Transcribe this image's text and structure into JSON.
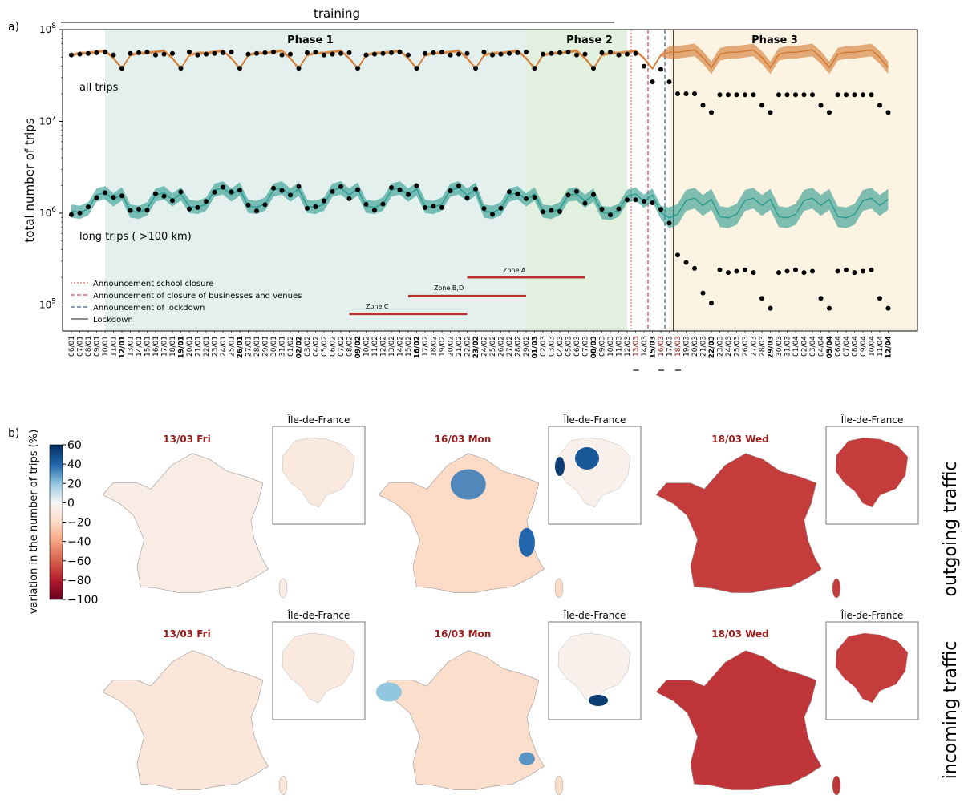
{
  "panel_a_label": "a)",
  "panel_b_label": "b)",
  "training_label": "training",
  "phases": [
    "Phase 1",
    "Phase 2",
    "Phase 3"
  ],
  "series_labels": {
    "all": "all trips",
    "long": "long  trips ( >100 km)"
  },
  "zones": [
    "Zone A",
    "Zone B,D",
    "Zone C"
  ],
  "legend": [
    {
      "label": "Announcement school closure",
      "color": "#e05050",
      "style": "dotted"
    },
    {
      "label": "Announcement of closure of businesses and venues",
      "color": "#b22222",
      "style": "dashed"
    },
    {
      "label": "Announcement of lockdown",
      "color": "#1a3a6a",
      "style": "dashed"
    },
    {
      "label": "Lockdown",
      "color": "#444444",
      "style": "solid"
    }
  ],
  "colors": {
    "phase1": "#e3f0ee",
    "phase2": "#e2f0e0",
    "phase3": "#fdf3e3",
    "orange": "#d2782e",
    "teal": "#2a9a8e",
    "zone": "#b83232",
    "event": "#9b1b1b"
  },
  "chart_data": [
    {
      "type": "line",
      "title": "",
      "ylabel": "total number of trips",
      "yscale": "log",
      "ylim": [
        50000,
        100000000
      ],
      "yticks": [
        "10^5",
        "10^6",
        "10^7",
        "10^8"
      ],
      "x": [
        "06/01",
        "07/01",
        "08/01",
        "09/01",
        "10/01",
        "11/01",
        "12/01",
        "13/01",
        "14/01",
        "15/01",
        "16/01",
        "17/01",
        "18/01",
        "19/01",
        "20/01",
        "21/01",
        "22/01",
        "23/01",
        "24/01",
        "25/01",
        "26/01",
        "27/01",
        "28/01",
        "29/01",
        "30/01",
        "31/01",
        "01/02",
        "02/02",
        "03/02",
        "04/02",
        "05/02",
        "06/02",
        "07/02",
        "08/02",
        "09/02",
        "10/02",
        "11/02",
        "12/02",
        "13/02",
        "14/02",
        "15/02",
        "16/02",
        "17/02",
        "18/02",
        "19/02",
        "20/02",
        "21/02",
        "22/02",
        "23/02",
        "24/02",
        "25/02",
        "26/02",
        "27/02",
        "28/02",
        "29/02",
        "01/03",
        "02/03",
        "03/03",
        "04/03",
        "05/03",
        "06/03",
        "07/03",
        "08/03",
        "09/03",
        "10/03",
        "11/03",
        "12/03",
        "13/03",
        "14/03",
        "15/03",
        "16/03",
        "17/03",
        "18/03",
        "19/03",
        "20/03",
        "21/03",
        "22/03",
        "23/03",
        "24/03",
        "25/03",
        "26/03",
        "27/03",
        "28/03",
        "29/03",
        "30/03",
        "31/03",
        "01/04",
        "02/04",
        "03/04",
        "04/04",
        "05/04",
        "06/04",
        "07/04",
        "08/04",
        "09/04",
        "10/04",
        "11/04",
        "12/04"
      ],
      "bold_ticks": [
        "12/01",
        "19/01",
        "26/01",
        "02/02",
        "09/02",
        "16/02",
        "23/02",
        "01/03",
        "08/03",
        "15/03",
        "22/03",
        "29/03",
        "05/04",
        "12/04"
      ],
      "red_ticks": [
        "13/03",
        "16/03",
        "18/03"
      ],
      "phases": [
        {
          "name": "Phase 1",
          "from": "10/01",
          "to": "29/02"
        },
        {
          "name": "Phase 2",
          "from": "29/02",
          "to": "12/03"
        },
        {
          "name": "Phase 3",
          "from": "17/03",
          "to": "12/04"
        }
      ],
      "training": {
        "from": "06/01",
        "to": "09/03"
      },
      "zone_bars": [
        {
          "name": "Zone C",
          "from": "08/02",
          "to": "22/02",
          "y": 80000
        },
        {
          "name": "Zone B,D",
          "from": "15/02",
          "to": "29/02",
          "y": 125000
        },
        {
          "name": "Zone A",
          "from": "22/02",
          "to": "07/03",
          "y": 200000
        }
      ],
      "events": [
        {
          "label": "Announcement school closure",
          "x": "12/03"
        },
        {
          "label": "Announcement of closure of businesses and venues",
          "x": "14/03"
        },
        {
          "label": "Announcement of lockdown",
          "x": "16/03"
        },
        {
          "label": "Lockdown",
          "x": "17/03"
        }
      ],
      "series": [
        {
          "name": "all trips",
          "observed_weekday": 56000000,
          "observed_sunday": 38000000,
          "lockdown_observed_weekday": 19500000,
          "lockdown_observed_sunday": 12500000,
          "observed_special": {
            "14/03": 40000000,
            "15/03": 27000000,
            "16/03": 37000000,
            "17/03": 27000000,
            "18/03": 20000000,
            "19/03": 20000000,
            "20/03": 20000000,
            "21/03": 15000000
          }
        },
        {
          "name": "long  trips ( >100 km)",
          "observed_range": [
            1000000,
            2600000
          ],
          "lockdown_observed_range": [
            85000,
            350000
          ],
          "observed_special": {
            "13/03": 1400000,
            "14/03": 1350000,
            "15/03": 1300000,
            "16/03": 1100000,
            "17/03": 780000,
            "18/03": 350000,
            "19/03": 290000,
            "20/03": 250000,
            "21/03": 135000,
            "22/03": 105000
          }
        }
      ]
    },
    {
      "type": "heatmap",
      "title": "",
      "colorbar_label": "variation in the number of trips (%)",
      "colorbar_ticks": [
        60,
        40,
        20,
        0,
        -20,
        -40,
        -60,
        -80,
        -100
      ],
      "colorbar_range": [
        -100,
        60
      ],
      "rows": [
        "outgoing traffic",
        "incoming traffic"
      ],
      "columns": [
        "13/03 Fri",
        "16/03 Mon",
        "18/03 Wed"
      ],
      "inset_title": "Île-de-France",
      "approx_mean_variation": {
        "outgoing traffic": [
          -8,
          -20,
          -70
        ],
        "incoming traffic": [
          -12,
          -18,
          -72
        ]
      }
    }
  ]
}
